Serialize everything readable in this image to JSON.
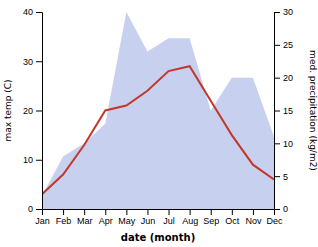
{
  "chart_data": {
    "type": "line",
    "xlabel": "date (month)",
    "ylabel": "max temp (C)",
    "y2label": "med. precipitation (kg/m2)",
    "categories": [
      "Jan",
      "Feb",
      "Mar",
      "Apr",
      "May",
      "Jun",
      "Jul",
      "Aug",
      "Sep",
      "Oct",
      "Nov",
      "Dec"
    ],
    "series": [
      {
        "type": "area",
        "axis": "y2",
        "color": "#c8d0f0",
        "values": [
          2,
          8,
          10,
          13,
          30,
          24,
          26,
          26,
          15,
          20,
          20,
          11
        ]
      },
      {
        "type": "line",
        "color": "#c0392b",
        "values": [
          3,
          7,
          13,
          20,
          21,
          24,
          28,
          29,
          22,
          15,
          9,
          6
        ]
      }
    ],
    "ylim": [
      0,
      40
    ],
    "yticks": [
      0,
      10,
      20,
      30,
      40
    ],
    "y2lim": [
      0,
      30
    ],
    "y2ticks": [
      0,
      5,
      10,
      15,
      20,
      25,
      30
    ],
    "grid": false
  }
}
